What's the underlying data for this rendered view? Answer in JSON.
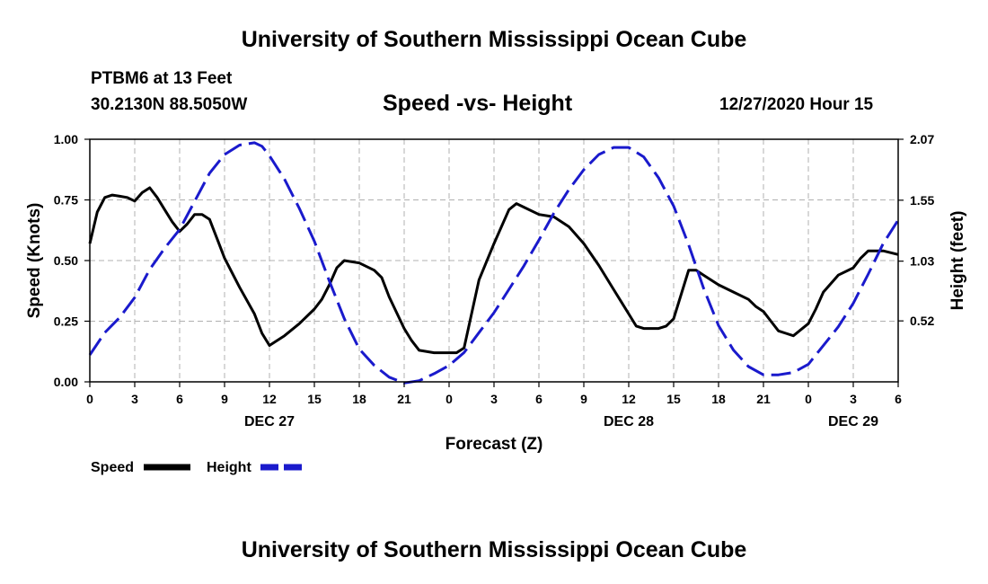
{
  "header": {
    "title": "University of Southern Mississippi Ocean Cube"
  },
  "footer": {
    "title": "University of Southern Mississippi Ocean Cube"
  },
  "station": {
    "name": "PTBM6 at 13 Feet",
    "coords": "30.2130N 88.5050W",
    "datetime": "12/27/2020 Hour 15"
  },
  "colors": {
    "speed": "#000000",
    "height": "#1a1acc",
    "grid": "#b0b0b0"
  },
  "chart_data": {
    "type": "line",
    "title": "Speed -vs- Height",
    "xlabel": "Forecast (Z)",
    "ylabel": "Speed (Knots)",
    "y2label": "Height (feet)",
    "xlim": [
      0,
      54
    ],
    "ylim": [
      0,
      1
    ],
    "y2lim": [
      0,
      2.07
    ],
    "x_ticks": [
      0,
      3,
      6,
      9,
      12,
      15,
      18,
      21,
      24,
      27,
      30,
      33,
      36,
      39,
      42,
      45,
      48,
      51,
      54
    ],
    "x_tick_labels": [
      "0",
      "3",
      "6",
      "9",
      "12",
      "15",
      "18",
      "21",
      "0",
      "3",
      "6",
      "9",
      "12",
      "15",
      "18",
      "21",
      "0",
      "3",
      "6"
    ],
    "day_labels": [
      {
        "x": 12,
        "label": "DEC 27"
      },
      {
        "x": 36,
        "label": "DEC 28"
      },
      {
        "x": 51,
        "label": "DEC 29"
      }
    ],
    "y_ticks": [
      0,
      0.25,
      0.5,
      0.75,
      1.0
    ],
    "y_tick_labels": [
      "0.00",
      "0.25",
      "0.50",
      "0.75",
      "1.00"
    ],
    "y2_ticks": [
      0.52,
      1.03,
      1.55,
      2.07
    ],
    "y2_tick_labels": [
      "0.52",
      "1.03",
      "1.55",
      "2.07"
    ],
    "grid": true,
    "legend": {
      "position": "bottom-left",
      "entries": [
        "Speed",
        "Height"
      ]
    },
    "series": [
      {
        "name": "Speed",
        "axis": "left",
        "style": "solid",
        "x": [
          0,
          0.5,
          1,
          1.5,
          2,
          2.5,
          3,
          3.5,
          4,
          4.5,
          5,
          5.5,
          6,
          6.5,
          7,
          7.5,
          8,
          8.5,
          9,
          10,
          11,
          11.5,
          12,
          13,
          14,
          15,
          15.5,
          16,
          16.5,
          17,
          18,
          19,
          19.5,
          20,
          21,
          21.5,
          22,
          23,
          24,
          24.5,
          25,
          26,
          27,
          28,
          28.5,
          29,
          30,
          31,
          32,
          33,
          34,
          35,
          35.5,
          36,
          36.5,
          37,
          38,
          38.5,
          39,
          40,
          40.5,
          41,
          42,
          43,
          44,
          44.5,
          45,
          45.5,
          46,
          46.5,
          47,
          48,
          48.5,
          49,
          50,
          51,
          51.5,
          52,
          53,
          54
        ],
        "values": [
          0.57,
          0.7,
          0.76,
          0.77,
          0.765,
          0.76,
          0.745,
          0.78,
          0.8,
          0.76,
          0.71,
          0.66,
          0.62,
          0.65,
          0.69,
          0.69,
          0.67,
          0.59,
          0.51,
          0.39,
          0.28,
          0.2,
          0.15,
          0.19,
          0.24,
          0.3,
          0.34,
          0.4,
          0.47,
          0.5,
          0.49,
          0.46,
          0.43,
          0.35,
          0.22,
          0.17,
          0.13,
          0.12,
          0.12,
          0.12,
          0.14,
          0.42,
          0.57,
          0.71,
          0.735,
          0.72,
          0.69,
          0.68,
          0.64,
          0.57,
          0.48,
          0.38,
          0.33,
          0.28,
          0.23,
          0.22,
          0.22,
          0.23,
          0.26,
          0.46,
          0.46,
          0.44,
          0.4,
          0.37,
          0.34,
          0.31,
          0.29,
          0.25,
          0.21,
          0.2,
          0.19,
          0.24,
          0.3,
          0.37,
          0.44,
          0.47,
          0.51,
          0.54,
          0.54,
          0.525
        ]
      },
      {
        "name": "Height",
        "axis": "right",
        "style": "dashed",
        "x": [
          0,
          1,
          2,
          3,
          4,
          5,
          6,
          7,
          8,
          9,
          10,
          11,
          11.5,
          12,
          13,
          14,
          15,
          16,
          17,
          18,
          19,
          20,
          21,
          22,
          23,
          24,
          25,
          26,
          27,
          28,
          29,
          30,
          31,
          32,
          33,
          34,
          35,
          36,
          37,
          38,
          39,
          40,
          41,
          42,
          43,
          44,
          45,
          46,
          47,
          48,
          49,
          50,
          51,
          52,
          53,
          54
        ],
        "values": [
          0.23,
          0.42,
          0.55,
          0.72,
          0.96,
          1.14,
          1.3,
          1.54,
          1.78,
          1.94,
          2.02,
          2.04,
          2.01,
          1.93,
          1.73,
          1.48,
          1.2,
          0.86,
          0.54,
          0.28,
          0.14,
          0.04,
          -0.01,
          0.01,
          0.07,
          0.14,
          0.25,
          0.42,
          0.59,
          0.79,
          0.99,
          1.21,
          1.44,
          1.64,
          1.81,
          1.94,
          2.0,
          2.0,
          1.92,
          1.74,
          1.5,
          1.17,
          0.8,
          0.48,
          0.27,
          0.13,
          0.06,
          0.06,
          0.08,
          0.15,
          0.31,
          0.47,
          0.67,
          0.92,
          1.18,
          1.38
        ]
      }
    ]
  }
}
